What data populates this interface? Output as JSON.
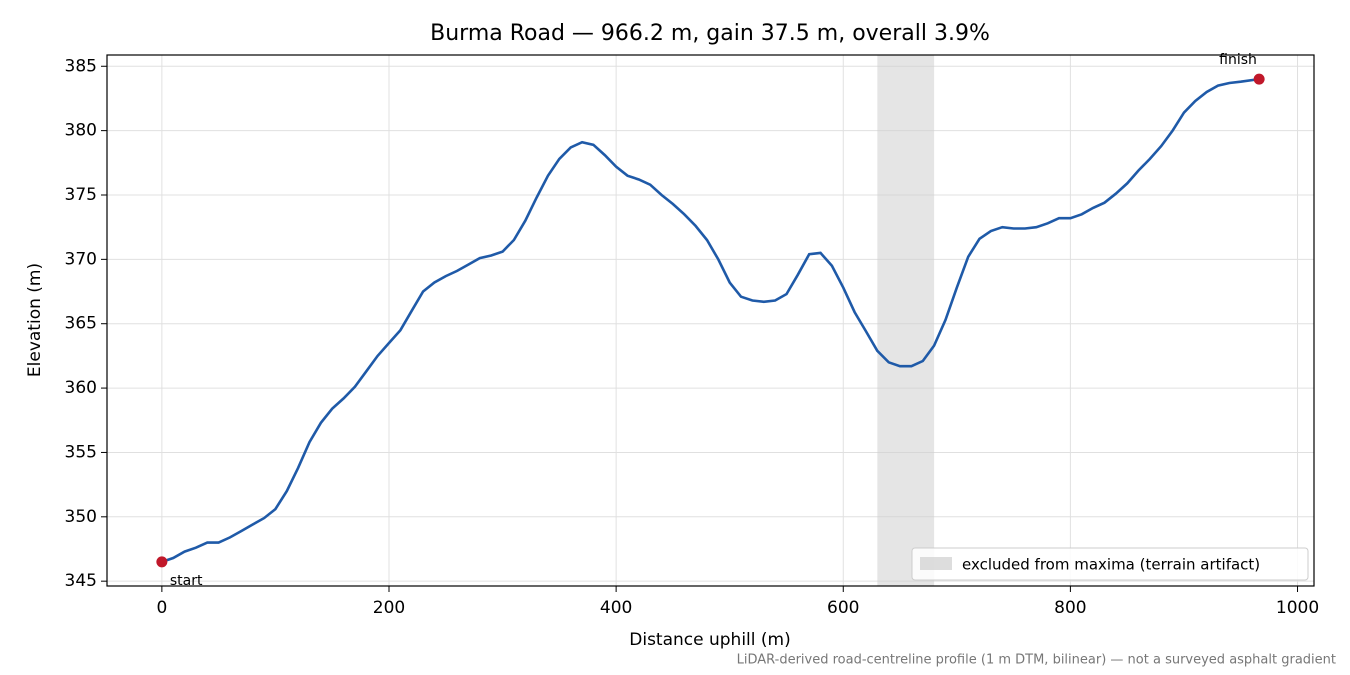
{
  "chart_data": {
    "type": "line",
    "title": "Burma Road — 966.2 m, gain 37.5 m, overall 3.9%",
    "xlabel": "Distance uphill (m)",
    "ylabel": "Elevation (m)",
    "note": "LiDAR-derived road-centreline profile (1 m DTM, bilinear) — not a surveyed asphalt gradient",
    "x": [
      0,
      10,
      20,
      30,
      40,
      50,
      60,
      70,
      80,
      90,
      100,
      110,
      120,
      130,
      140,
      150,
      160,
      170,
      180,
      190,
      200,
      210,
      220,
      230,
      240,
      250,
      260,
      270,
      280,
      290,
      300,
      310,
      320,
      330,
      340,
      350,
      360,
      370,
      380,
      390,
      400,
      410,
      420,
      430,
      440,
      450,
      460,
      470,
      480,
      490,
      500,
      510,
      520,
      530,
      540,
      550,
      560,
      570,
      580,
      590,
      600,
      610,
      620,
      630,
      640,
      650,
      660,
      670,
      680,
      690,
      700,
      710,
      720,
      730,
      740,
      750,
      760,
      770,
      780,
      790,
      800,
      810,
      820,
      830,
      840,
      850,
      860,
      870,
      880,
      890,
      900,
      910,
      920,
      930,
      940,
      950,
      966.2
    ],
    "values": [
      346.5,
      346.8,
      347.3,
      347.6,
      348.0,
      348.0,
      348.4,
      348.9,
      349.4,
      349.9,
      350.6,
      352.0,
      353.8,
      355.8,
      357.3,
      358.4,
      359.2,
      360.1,
      361.3,
      362.5,
      363.5,
      364.5,
      366.0,
      367.5,
      368.2,
      368.7,
      369.1,
      369.6,
      370.1,
      370.3,
      370.6,
      371.5,
      373.0,
      374.8,
      376.5,
      377.8,
      378.7,
      379.1,
      378.9,
      378.1,
      377.2,
      376.5,
      376.2,
      375.8,
      375.0,
      374.3,
      373.5,
      372.6,
      371.5,
      370.0,
      368.2,
      367.1,
      366.8,
      366.7,
      366.8,
      367.3,
      368.8,
      370.4,
      370.5,
      369.5,
      367.8,
      365.9,
      364.4,
      362.9,
      362.0,
      361.7,
      361.7,
      362.1,
      363.3,
      365.3,
      367.8,
      370.2,
      371.6,
      372.2,
      372.5,
      372.4,
      372.4,
      372.5,
      372.8,
      373.2,
      373.2,
      373.5,
      374.0,
      374.4,
      375.1,
      375.9,
      376.9,
      377.8,
      378.8,
      380.0,
      381.4,
      382.3,
      383.0,
      383.5,
      383.7,
      383.8,
      384.0
    ],
    "color": "#1f5aa8",
    "points": [
      {
        "label": "start",
        "x": 0,
        "y": 346.5,
        "color": "#c0182a"
      },
      {
        "label": "finish",
        "x": 966.2,
        "y": 384.0,
        "color": "#c0182a"
      }
    ],
    "spans": [
      {
        "x0": 630,
        "x1": 680,
        "label": "excluded from maxima (terrain artifact)",
        "color": "#cfcfcf"
      }
    ],
    "legend": "lower right",
    "xlim": [
      -48.31,
      1014.51
    ],
    "xticks": [
      0,
      200,
      400,
      600,
      800,
      1000
    ],
    "ylim": [
      344.625,
      385.875
    ],
    "yticks": [
      345,
      350,
      355,
      360,
      365,
      370,
      375,
      380,
      385
    ],
    "grid": true
  }
}
